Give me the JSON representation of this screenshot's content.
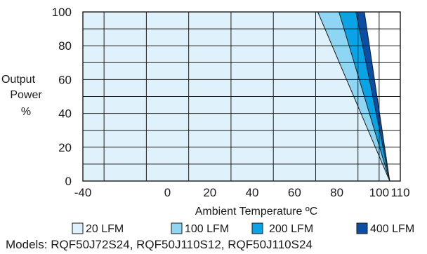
{
  "chart_data": {
    "type": "area",
    "title": "",
    "xlabel": "Ambient Temperature ºC",
    "ylabel_lines": [
      "Output",
      "Power",
      "%"
    ],
    "xlim": [
      -40,
      110
    ],
    "ylim": [
      0,
      100
    ],
    "x_ticks": [
      "-40",
      "0",
      "20",
      "40",
      "60",
      "80",
      "100",
      "110"
    ],
    "x_tick_values": [
      -40,
      0,
      20,
      40,
      60,
      80,
      100,
      110
    ],
    "y_ticks": [
      "0",
      "20",
      "40",
      "60",
      "80",
      "100"
    ],
    "y_tick_values": [
      0,
      20,
      40,
      60,
      80,
      100
    ],
    "x_grid_values": [
      -30,
      -10,
      10,
      30,
      50,
      70,
      90,
      100
    ],
    "y_grid_values": [
      10,
      20,
      30,
      40,
      50,
      60,
      70,
      80,
      90
    ],
    "grid": true,
    "legend_position": "bottom",
    "series": [
      {
        "name": "400 LFM",
        "color": "#0a4ea6",
        "points": [
          [
            -40,
            100
          ],
          [
            93,
            100
          ],
          [
            105,
            0
          ]
        ]
      },
      {
        "name": "200 LFM",
        "color": "#0aa4e6",
        "points": [
          [
            -40,
            100
          ],
          [
            89,
            100
          ],
          [
            105,
            0
          ]
        ]
      },
      {
        "name": "100 LFM",
        "color": "#8fd6f5",
        "points": [
          [
            -40,
            100
          ],
          [
            81,
            100
          ],
          [
            105,
            0
          ]
        ]
      },
      {
        "name": "20 LFM",
        "color": "#dff2fb",
        "points": [
          [
            -40,
            100
          ],
          [
            71,
            100
          ],
          [
            105,
            0
          ]
        ]
      }
    ],
    "legend": [
      {
        "label": "20 LFM",
        "color": "#dff2fb"
      },
      {
        "label": "100 LFM",
        "color": "#8fd6f5"
      },
      {
        "label": "200 LFM",
        "color": "#0aa4e6"
      },
      {
        "label": "400 LFM",
        "color": "#0a4ea6"
      }
    ],
    "models_text": "Models:  RQF50J72S24, RQF50J110S12, RQF50J110S24"
  }
}
